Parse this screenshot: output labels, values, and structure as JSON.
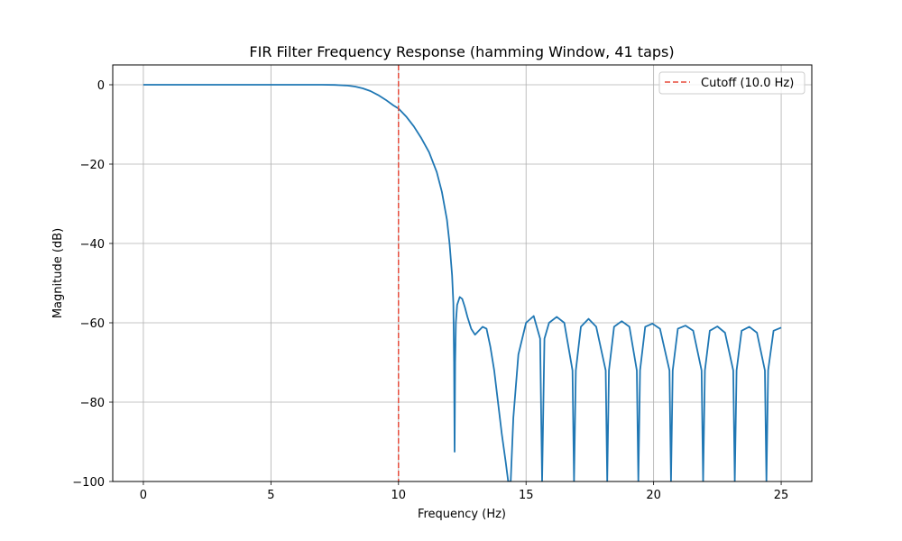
{
  "chart_data": {
    "type": "line",
    "title": "FIR Filter Frequency Response (hamming Window, 41 taps)",
    "xlabel": "Frequency (Hz)",
    "ylabel": "Magnitude (dB)",
    "xlim": [
      -1.2,
      26.2
    ],
    "ylim": [
      -100,
      5
    ],
    "x_ticks": [
      0,
      5,
      10,
      15,
      20,
      25
    ],
    "x_tick_labels": [
      "0",
      "5",
      "10",
      "15",
      "20",
      "25"
    ],
    "y_ticks": [
      0,
      -20,
      -40,
      -60,
      -80,
      -100
    ],
    "y_tick_labels": [
      "0",
      "−20",
      "−40",
      "−60",
      "−80",
      "−100"
    ],
    "grid": true,
    "legend_position": "upper-right",
    "series": [
      {
        "color": "#1f77b4",
        "x": [
          0,
          2,
          4,
          6,
          7,
          7.5,
          8,
          8.3,
          8.6,
          8.9,
          9.2,
          9.5,
          9.8,
          10,
          10.3,
          10.6,
          10.9,
          11.2,
          11.5,
          11.7,
          11.9,
          12.0,
          12.1,
          12.15,
          12.18,
          12.2,
          12.22,
          12.25,
          12.3,
          12.4,
          12.5,
          12.6,
          12.7,
          12.85,
          13.0,
          13.15,
          13.3,
          13.45,
          13.6,
          13.75,
          13.9,
          14.05,
          14.2,
          14.3,
          14.35,
          14.4,
          14.5,
          14.7,
          15.0,
          15.3,
          15.55,
          15.63,
          15.72,
          15.9,
          16.2,
          16.5,
          16.82,
          16.88,
          16.95,
          17.15,
          17.45,
          17.75,
          18.12,
          18.18,
          18.25,
          18.45,
          18.75,
          19.05,
          19.34,
          19.4,
          19.47,
          19.67,
          19.95,
          20.25,
          20.62,
          20.68,
          20.75,
          20.95,
          21.25,
          21.55,
          21.88,
          21.94,
          22.01,
          22.2,
          22.5,
          22.8,
          23.12,
          23.18,
          23.25,
          23.45,
          23.75,
          24.05,
          24.36,
          24.42,
          24.49,
          24.7,
          25.0
        ],
        "values": [
          0,
          0,
          0,
          0,
          0,
          -0.05,
          -0.2,
          -0.45,
          -0.9,
          -1.6,
          -2.6,
          -3.8,
          -5.2,
          -6.0,
          -8.0,
          -10.5,
          -13.5,
          -17.0,
          -22.0,
          -27.0,
          -34.0,
          -40.0,
          -48.0,
          -55.0,
          -70.0,
          -92.5,
          -70.0,
          -60.0,
          -55.5,
          -53.5,
          -54.0,
          -56.0,
          -58.5,
          -61.5,
          -63.0,
          -62.0,
          -61.0,
          -61.5,
          -66.0,
          -72.0,
          -80.0,
          -88.0,
          -95.0,
          -100,
          -100,
          -100,
          -84.0,
          -68.0,
          -60.0,
          -58.3,
          -64.0,
          -100,
          -64.0,
          -60.0,
          -58.5,
          -60.0,
          -72.0,
          -100,
          -72.0,
          -61.0,
          -59.0,
          -61.0,
          -72.0,
          -100,
          -72.0,
          -61.0,
          -59.6,
          -61.0,
          -72.0,
          -100,
          -72.0,
          -61.0,
          -60.2,
          -61.5,
          -72.0,
          -100,
          -72.0,
          -61.5,
          -60.7,
          -62.0,
          -72.0,
          -100,
          -72.0,
          -62.0,
          -60.9,
          -62.5,
          -72.0,
          -100,
          -72.0,
          -62.0,
          -61.0,
          -62.5,
          -72.0,
          -100,
          -72.0,
          -62.0,
          -61.2
        ]
      }
    ],
    "reference_lines": [
      {
        "orientation": "vertical",
        "x": 10.0,
        "color": "#e74c3c",
        "style": "dashed",
        "label": "Cutoff (10.0 Hz)"
      }
    ]
  }
}
